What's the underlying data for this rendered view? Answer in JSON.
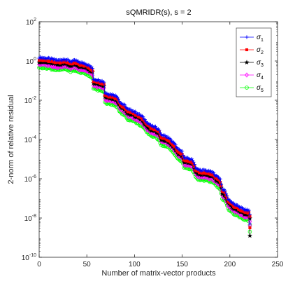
{
  "chart_data": {
    "type": "line",
    "title": "sQMRIDR(s), s = 2",
    "xlabel": "Number of matrix-vector products",
    "ylabel": "2-norm of relative residual",
    "xlim": [
      0,
      250
    ],
    "ylim_log10": [
      -10,
      2
    ],
    "y_scale": "log",
    "x_ticks": [
      0,
      50,
      100,
      150,
      200,
      250
    ],
    "y_tick_exponents": [
      -10,
      -8,
      -6,
      -4,
      -2,
      0,
      2
    ],
    "grid": false,
    "legend_position": "top-right",
    "series": [
      {
        "name": "σ1",
        "legend_base": "σ",
        "legend_sub": "1",
        "color": "#0000ff",
        "marker": "plus",
        "offset_log10": 0.18
      },
      {
        "name": "σ2",
        "legend_base": "σ",
        "legend_sub": "2",
        "color": "#ff0000",
        "marker": "square",
        "offset_log10": 0.06
      },
      {
        "name": "σ3",
        "legend_base": "σ",
        "legend_sub": "3",
        "color": "#000000",
        "marker": "star",
        "offset_log10": -0.04
      },
      {
        "name": "σ4",
        "legend_base": "σ",
        "legend_sub": "4",
        "color": "#ff00ff",
        "marker": "diamond",
        "offset_log10": -0.16
      },
      {
        "name": "σ5",
        "legend_base": "σ",
        "legend_sub": "5",
        "color": "#00ff00",
        "marker": "circle",
        "offset_log10": -0.32
      }
    ],
    "base_curve": {
      "x": [
        0,
        10,
        20,
        27,
        33,
        38,
        42,
        48,
        52,
        56,
        57,
        62,
        66,
        68,
        69,
        72,
        78,
        82,
        85,
        88,
        90,
        93,
        98,
        103,
        108,
        113,
        118,
        122,
        126,
        128,
        132,
        136,
        138,
        140,
        142,
        146,
        150,
        152,
        156,
        160,
        162,
        164,
        166,
        170,
        174,
        178,
        182,
        186,
        188,
        190,
        192,
        195,
        198,
        205,
        210,
        215,
        220,
        221
      ],
      "y_log10": [
        0,
        -0.05,
        -0.15,
        -0.08,
        -0.2,
        -0.15,
        -0.25,
        -0.3,
        -0.4,
        -0.55,
        -1.1,
        -1.15,
        -1.2,
        -1.25,
        -1.8,
        -1.85,
        -1.9,
        -2.0,
        -2.3,
        -2.4,
        -2.45,
        -2.65,
        -2.7,
        -2.85,
        -3.0,
        -3.3,
        -3.5,
        -3.55,
        -3.7,
        -3.95,
        -4.0,
        -4.1,
        -4.2,
        -4.3,
        -4.4,
        -4.7,
        -4.8,
        -5.1,
        -5.15,
        -5.2,
        -5.3,
        -5.6,
        -5.7,
        -5.75,
        -5.75,
        -5.8,
        -5.85,
        -6.05,
        -6.1,
        -6.2,
        -6.7,
        -6.8,
        -7.2,
        -7.5,
        -7.6,
        -7.75,
        -7.8,
        -8.0
      ]
    },
    "end_points_log10": [
      -8.3,
      -8.5,
      -8.9,
      -8.4,
      -8.7
    ]
  }
}
